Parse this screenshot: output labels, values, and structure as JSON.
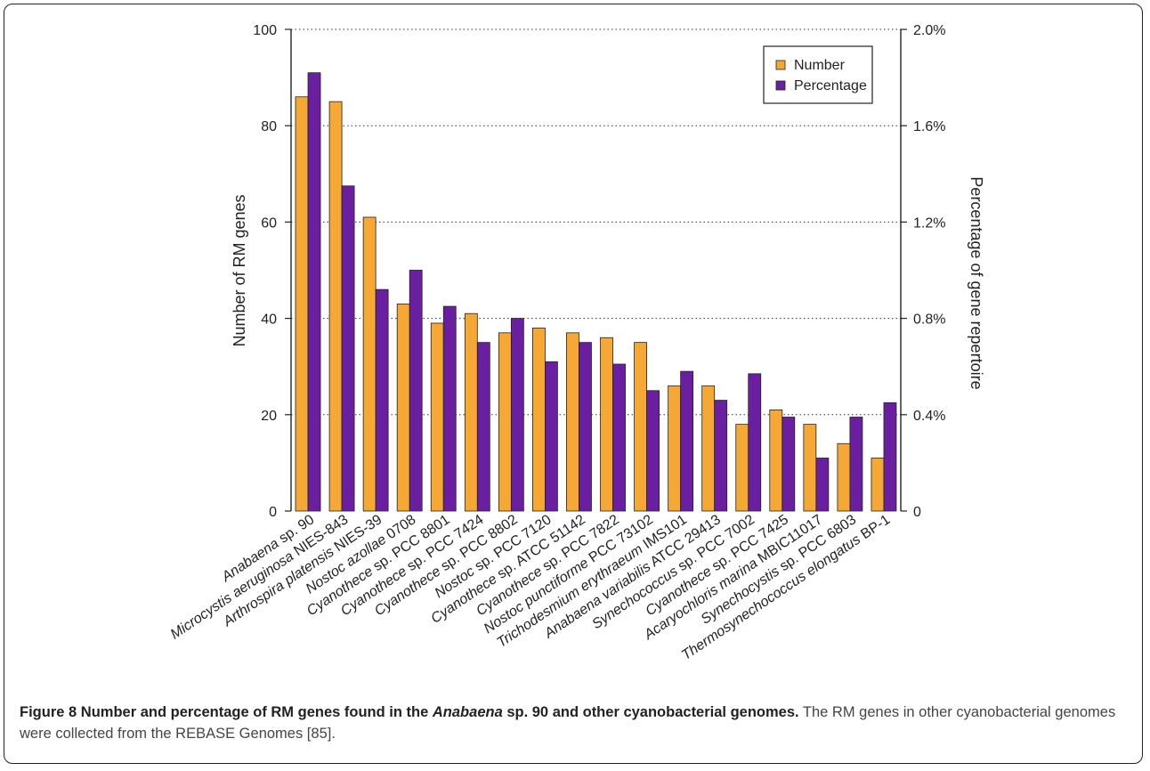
{
  "chart_data": {
    "type": "bar",
    "ylabel": "Number of RM genes",
    "y2label": "Percentage of gene repertoire",
    "ylim": [
      0,
      100
    ],
    "y2lim": [
      0,
      2.0
    ],
    "yticks": [
      "0",
      "20",
      "40",
      "60",
      "80",
      "100"
    ],
    "y2ticks": [
      "0",
      "0.4%",
      "0.8%",
      "1.2%",
      "1.6%",
      "2.0%"
    ],
    "grid": "horizontal-dotted",
    "legend_position": "top-right",
    "categories": [
      {
        "italic": "Anabaena",
        "rest": " sp. 90"
      },
      {
        "italic": "Microcystis aeruginosa",
        "rest": " NIES-843"
      },
      {
        "italic": "Arthrospira platensis",
        "rest": " NIES-39"
      },
      {
        "italic": "Nostoc azollae",
        "rest": " 0708"
      },
      {
        "italic": "Cyanothece",
        "rest": " sp. PCC 8801"
      },
      {
        "italic": "Cyanothece",
        "rest": " sp. PCC 7424"
      },
      {
        "italic": "Cyanothece",
        "rest": " sp. PCC 8802"
      },
      {
        "italic": "Nostoc",
        "rest": " sp. PCC 7120"
      },
      {
        "italic": "Cyanothece",
        "rest": " sp. ATCC 51142"
      },
      {
        "italic": "Cyanothece",
        "rest": " sp. PCC 7822"
      },
      {
        "italic": "Nostoc punctiforme",
        "rest": " PCC 73102"
      },
      {
        "italic": "Trichodesmium erythraeum",
        "rest": " IMS101"
      },
      {
        "italic": "Anabaena variabilis",
        "rest": " ATCC 29413"
      },
      {
        "italic": "Synechococcus",
        "rest": " sp. PCC 7002"
      },
      {
        "italic": "Cyanothece",
        "rest": " sp. PCC 7425"
      },
      {
        "italic": "Acaryochloris marina",
        "rest": " MBIC11017"
      },
      {
        "italic": "Synechocystis",
        "rest": " sp. PCC 6803"
      },
      {
        "italic": "Thermosynechococcus elongatus",
        "rest": " BP-1"
      }
    ],
    "series": [
      {
        "name": "Number",
        "axis": "left",
        "color": "#F5A833",
        "values": [
          86,
          85,
          61,
          43,
          39,
          41,
          37,
          38,
          37,
          36,
          35,
          26,
          26,
          18,
          21,
          18,
          14,
          11
        ]
      },
      {
        "name": "Percentage",
        "axis": "right",
        "unit": "%",
        "color": "#6A1FA0",
        "values": [
          1.82,
          1.35,
          0.92,
          1.0,
          0.85,
          0.7,
          0.8,
          0.62,
          0.7,
          0.61,
          0.5,
          0.58,
          0.46,
          0.57,
          0.39,
          0.22,
          0.39,
          0.45
        ]
      }
    ]
  },
  "caption": {
    "label": "Figure 8",
    "title_pre": " Number and percentage of RM genes found in the ",
    "title_italic": "Anabaena",
    "title_post": " sp. 90 and other cyanobacterial genomes.",
    "body": " The RM genes in other cyanobacterial genomes were collected from the REBASE Genomes [85]."
  }
}
